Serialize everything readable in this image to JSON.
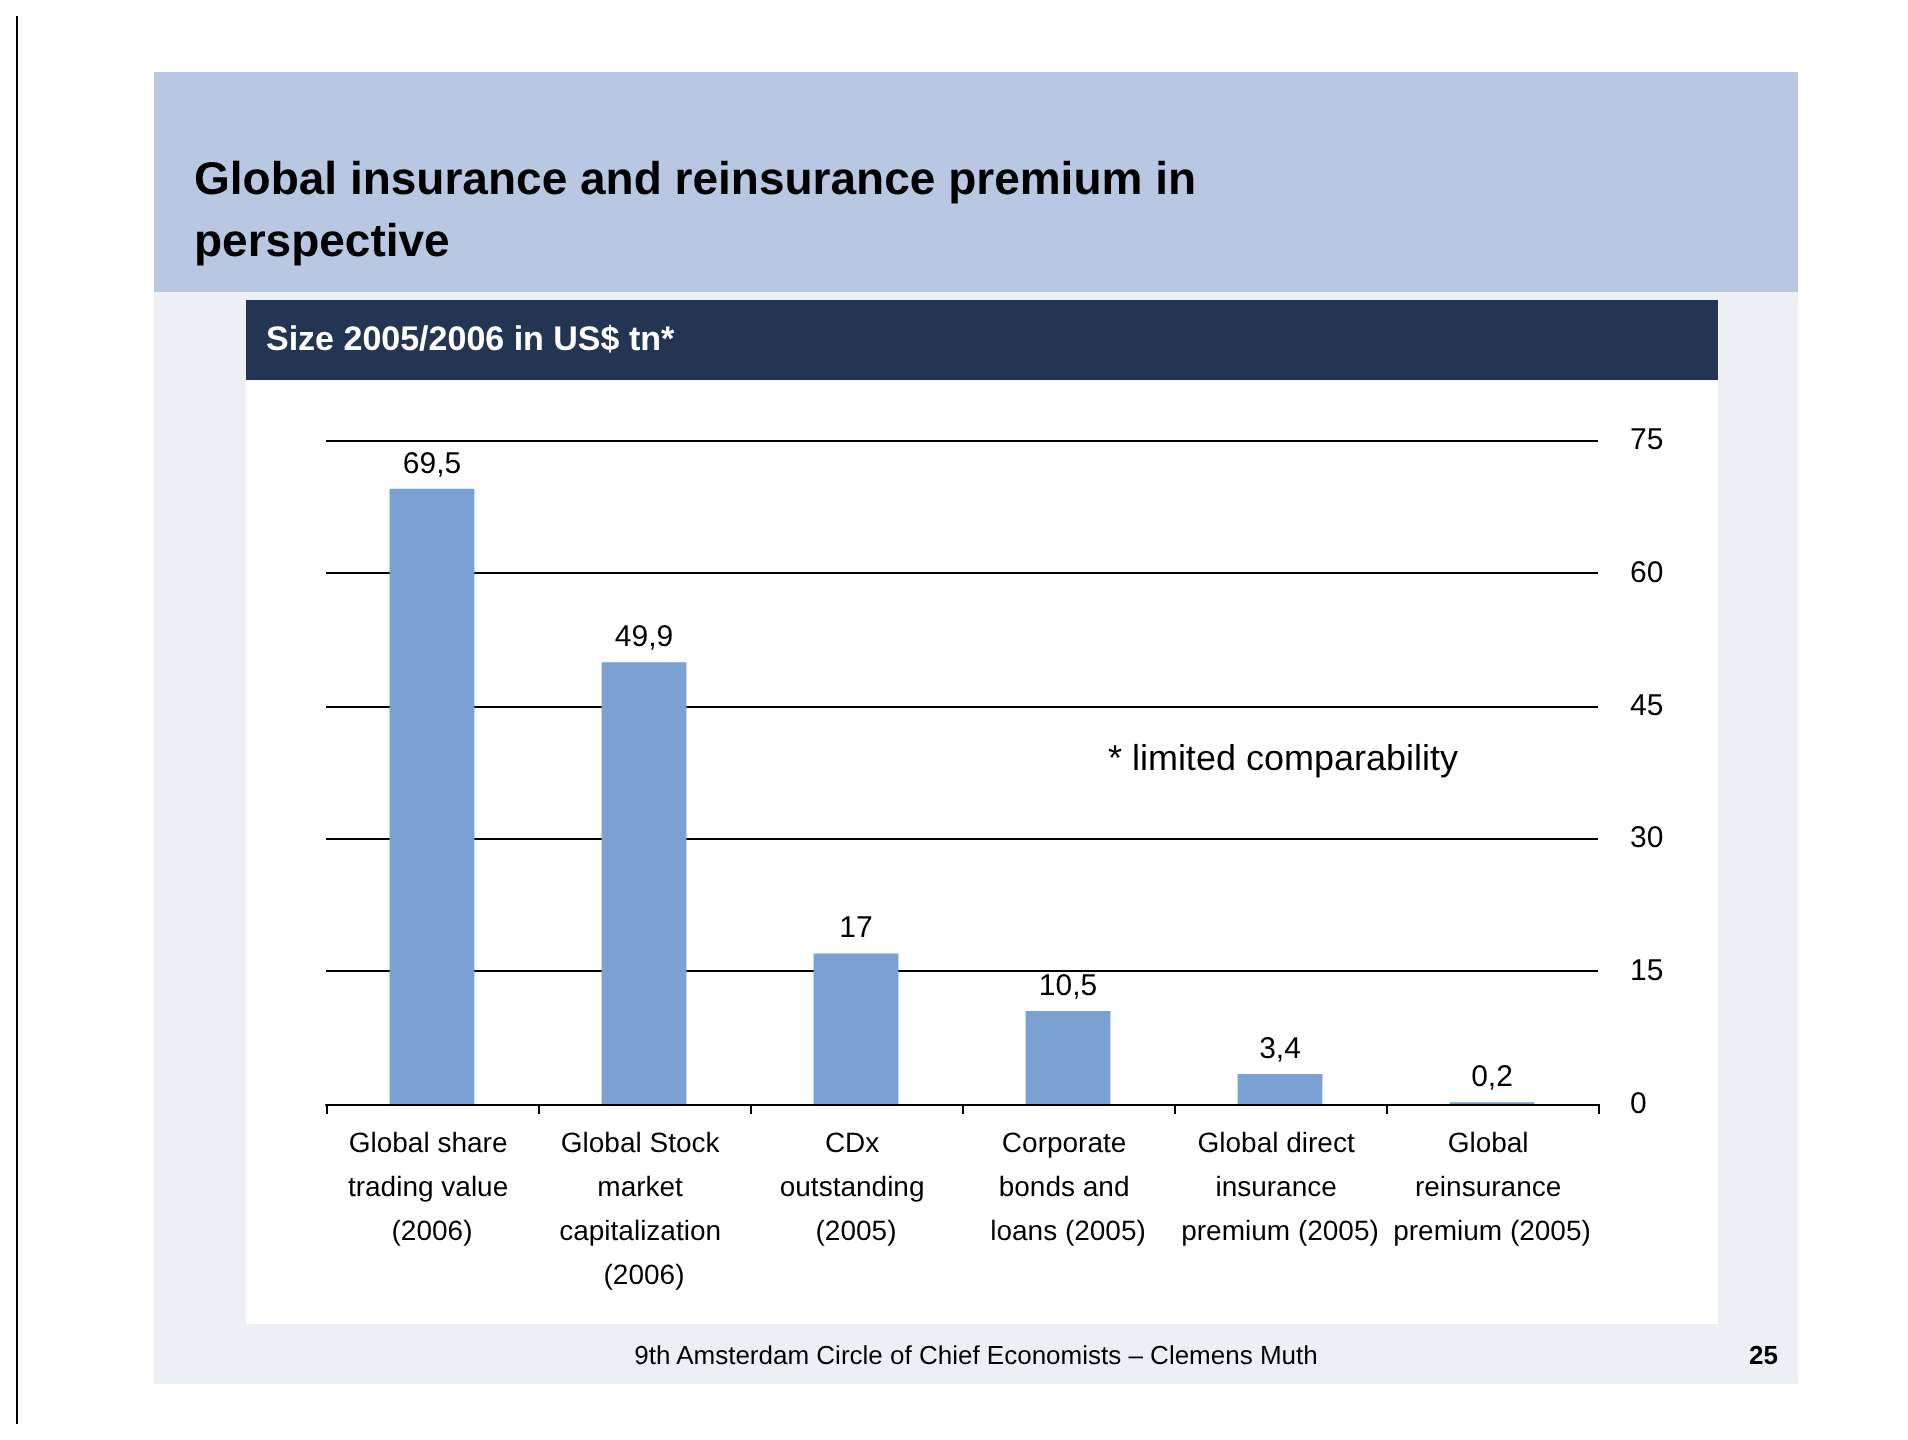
{
  "chart_data": {
    "type": "bar",
    "title": "Global insurance and reinsurance premium in perspective",
    "subtitle": "Size 2005/2006 in US$ tn*",
    "categories": [
      "Global share trading value (2006)",
      "Global Stock market capitalization (2006)",
      "CDx outstanding (2005)",
      "Corporate bonds and loans (2005)",
      "Global direct insurance premium (2005)",
      "Global reinsurance premium (2005)"
    ],
    "values": [
      69.5,
      49.9,
      17,
      10.5,
      3.4,
      0.2
    ],
    "value_labels": [
      "69,5",
      "49,9",
      "17",
      "10,5",
      "3,4",
      "0,2"
    ],
    "color": "#7ba0d2",
    "ylim": [
      0,
      75
    ],
    "yticks": [
      0,
      15,
      30,
      45,
      60,
      75
    ],
    "grid": "y",
    "annotations": [
      "* limited comparability",
      "9th Amsterdam Circle of Chief Economists – Clemens Muth",
      "25"
    ]
  }
}
